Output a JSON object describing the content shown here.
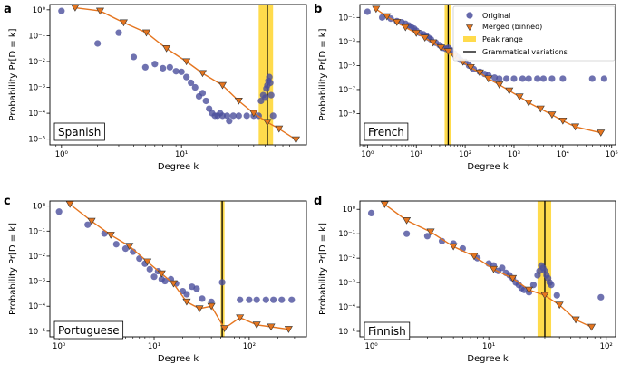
{
  "colors": {
    "original": "#4b4f9c",
    "merged_line": "#e5751f",
    "merged_marker": "#e5751f",
    "peak": "#ffd21f",
    "grammatical": "#000000"
  },
  "legend": {
    "original": "Original",
    "merged": "Merged (binned)",
    "peak": "Peak range",
    "grammatical": "Grammatical variations"
  },
  "chart_data": [
    {
      "type": "scatter",
      "panel": "a",
      "language": "Spanish",
      "xlabel": "Degree k",
      "ylabel": "Probability Pr[D = k]",
      "xscale": "log",
      "yscale": "log",
      "xlim": [
        0.8,
        110
      ],
      "ylim": [
        6e-06,
        1.6
      ],
      "xticks": [
        1,
        10
      ],
      "xtick_labels": [
        "10⁰",
        "10¹"
      ],
      "yticks": [
        1e-05,
        0.0001,
        0.001,
        0.01,
        0.1,
        1
      ],
      "ytick_labels": [
        "10⁻⁵",
        "10⁻⁴",
        "10⁻³",
        "10⁻²",
        "10⁻¹",
        "10⁰"
      ],
      "peak_range": [
        44,
        58
      ],
      "grammatical_k": 52,
      "original": [
        [
          1,
          0.9
        ],
        [
          2,
          0.05
        ],
        [
          3,
          0.13
        ],
        [
          4,
          0.015
        ],
        [
          5,
          0.006
        ],
        [
          6,
          0.008
        ],
        [
          7,
          0.0055
        ],
        [
          8,
          0.006
        ],
        [
          9,
          0.0042
        ],
        [
          10,
          0.004
        ],
        [
          11,
          0.0025
        ],
        [
          12,
          0.0015
        ],
        [
          13,
          0.001
        ],
        [
          14,
          0.00045
        ],
        [
          15,
          0.0006
        ],
        [
          16,
          0.0003
        ],
        [
          17,
          0.00015
        ],
        [
          18,
          0.0001
        ],
        [
          19,
          8e-05
        ],
        [
          20,
          8e-05
        ],
        [
          21,
          0.0001
        ],
        [
          22,
          8e-05
        ],
        [
          24,
          8e-05
        ],
        [
          25,
          5e-05
        ],
        [
          27,
          8e-05
        ],
        [
          30,
          8e-05
        ],
        [
          35,
          8e-05
        ],
        [
          40,
          8e-05
        ],
        [
          44,
          8e-05
        ],
        [
          46,
          0.0003
        ],
        [
          48,
          0.0005
        ],
        [
          50,
          0.0004
        ],
        [
          51,
          0.0009
        ],
        [
          52,
          0.0012
        ],
        [
          53,
          0.0018
        ],
        [
          54,
          0.0025
        ],
        [
          55,
          0.0015
        ],
        [
          56,
          0.0005
        ],
        [
          58,
          8e-05
        ]
      ],
      "merged": [
        [
          1.3,
          1.2
        ],
        [
          2.1,
          0.9
        ],
        [
          3.3,
          0.32
        ],
        [
          5.1,
          0.13
        ],
        [
          7.5,
          0.032
        ],
        [
          11,
          0.01
        ],
        [
          15,
          0.0035
        ],
        [
          22,
          0.0012
        ],
        [
          30,
          0.0003
        ],
        [
          40,
          0.0001
        ],
        [
          52,
          4.5e-05
        ],
        [
          65,
          2.5e-05
        ],
        [
          90,
          9.5e-06
        ]
      ]
    },
    {
      "type": "scatter",
      "panel": "b",
      "language": "French",
      "xlabel": "Degree k",
      "ylabel": "Probability Pr[D = k]",
      "xscale": "log",
      "yscale": "log",
      "xlim": [
        0.7,
        120000
      ],
      "ylim": [
        2.5e-12,
        1.2
      ],
      "xticks": [
        1,
        10,
        100,
        1000,
        10000,
        100000
      ],
      "xtick_labels": [
        "10⁰",
        "10¹",
        "10²",
        "10³",
        "10⁴",
        "10⁵"
      ],
      "yticks": [
        1e-09,
        1e-07,
        1e-05,
        0.001,
        0.1
      ],
      "ytick_labels": [
        "10⁻⁹",
        "10⁻⁷",
        "10⁻⁵",
        "10⁻³",
        "10⁻¹"
      ],
      "peak_range": [
        38,
        52
      ],
      "grammatical_k": 45,
      "original": [
        [
          1,
          0.3
        ],
        [
          2,
          0.1
        ],
        [
          3,
          0.08
        ],
        [
          4,
          0.05
        ],
        [
          5,
          0.04
        ],
        [
          6,
          0.03
        ],
        [
          7,
          0.022
        ],
        [
          8,
          0.015
        ],
        [
          9,
          0.012
        ],
        [
          10,
          0.008
        ],
        [
          12,
          0.005
        ],
        [
          14,
          0.004
        ],
        [
          16,
          0.003
        ],
        [
          18,
          0.002
        ],
        [
          20,
          0.0015
        ],
        [
          25,
          0.0008
        ],
        [
          30,
          0.0005
        ],
        [
          35,
          0.0003
        ],
        [
          40,
          0.00025
        ],
        [
          45,
          0.0003
        ],
        [
          50,
          0.0002
        ],
        [
          60,
          0.0001
        ],
        [
          70,
          5e-05
        ],
        [
          80,
          3e-05
        ],
        [
          100,
          2e-05
        ],
        [
          120,
          1e-05
        ],
        [
          150,
          5e-06
        ],
        [
          200,
          3e-06
        ],
        [
          250,
          2e-06
        ],
        [
          300,
          1.5e-06
        ],
        [
          400,
          1e-06
        ],
        [
          500,
          8e-07
        ],
        [
          700,
          8e-07
        ],
        [
          1000,
          8e-07
        ],
        [
          1500,
          8e-07
        ],
        [
          2000,
          8e-07
        ],
        [
          3000,
          8e-07
        ],
        [
          4000,
          8e-07
        ],
        [
          6000,
          8e-07
        ],
        [
          10000,
          8e-07
        ],
        [
          40000,
          8e-07
        ],
        [
          70000,
          8e-07
        ]
      ],
      "merged": [
        [
          1.5,
          0.5
        ],
        [
          2.5,
          0.12
        ],
        [
          4,
          0.04
        ],
        [
          6,
          0.015
        ],
        [
          10,
          0.005
        ],
        [
          15,
          0.002
        ],
        [
          22,
          0.0008
        ],
        [
          32,
          0.0003
        ],
        [
          45,
          0.00015
        ],
        [
          60,
          6e-05
        ],
        [
          90,
          2e-05
        ],
        [
          130,
          7e-06
        ],
        [
          200,
          2.5e-06
        ],
        [
          300,
          8e-07
        ],
        [
          500,
          2.5e-07
        ],
        [
          800,
          8e-08
        ],
        [
          1300,
          2.5e-08
        ],
        [
          2000,
          8e-09
        ],
        [
          3500,
          2.5e-09
        ],
        [
          6000,
          8e-10
        ],
        [
          10000,
          2.5e-10
        ],
        [
          18000,
          8e-11
        ],
        [
          60000,
          2.5e-11
        ]
      ]
    },
    {
      "type": "scatter",
      "panel": "c",
      "language": "Portuguese",
      "xlabel": "Degree k",
      "ylabel": "Probability Pr[D = k]",
      "xscale": "log",
      "yscale": "log",
      "xlim": [
        0.8,
        400
      ],
      "ylim": [
        6e-06,
        1.6
      ],
      "xticks": [
        1,
        10,
        100
      ],
      "xtick_labels": [
        "10⁰",
        "10¹",
        "10²"
      ],
      "yticks": [
        1e-05,
        0.0001,
        0.001,
        0.01,
        0.1,
        1
      ],
      "ytick_labels": [
        "10⁻⁵",
        "10⁻⁴",
        "10⁻³",
        "10⁻²",
        "10⁻¹",
        "10⁰"
      ],
      "peak_range": [
        50,
        55
      ],
      "grammatical_k": 52,
      "original": [
        [
          1,
          0.6
        ],
        [
          2,
          0.18
        ],
        [
          3,
          0.08
        ],
        [
          4,
          0.03
        ],
        [
          5,
          0.02
        ],
        [
          6,
          0.015
        ],
        [
          7,
          0.008
        ],
        [
          8,
          0.005
        ],
        [
          9,
          0.003
        ],
        [
          10,
          0.0015
        ],
        [
          11,
          0.0025
        ],
        [
          12,
          0.0012
        ],
        [
          13,
          0.001
        ],
        [
          15,
          0.0012
        ],
        [
          17,
          0.0008
        ],
        [
          20,
          0.0004
        ],
        [
          22,
          0.0003
        ],
        [
          25,
          0.0006
        ],
        [
          28,
          0.0005
        ],
        [
          32,
          0.0002
        ],
        [
          40,
          0.00015
        ],
        [
          52,
          0.0009
        ],
        [
          80,
          0.00018
        ],
        [
          100,
          0.00018
        ],
        [
          120,
          0.00018
        ],
        [
          150,
          0.00018
        ],
        [
          180,
          0.00018
        ],
        [
          220,
          0.00018
        ],
        [
          280,
          0.00018
        ]
      ],
      "merged": [
        [
          1.3,
          1.2
        ],
        [
          2.2,
          0.25
        ],
        [
          3.5,
          0.07
        ],
        [
          5.5,
          0.025
        ],
        [
          8.5,
          0.006
        ],
        [
          12,
          0.002
        ],
        [
          16,
          0.0008
        ],
        [
          22,
          0.00015
        ],
        [
          30,
          8e-05
        ],
        [
          40,
          0.0001
        ],
        [
          55,
          1.3e-05
        ],
        [
          80,
          3.5e-05
        ],
        [
          120,
          1.8e-05
        ],
        [
          170,
          1.5e-05
        ],
        [
          260,
          1.2e-05
        ]
      ]
    },
    {
      "type": "scatter",
      "panel": "d",
      "language": "Finnish",
      "xlabel": "Degree k",
      "ylabel": "Probability Pr[D = k]",
      "xscale": "log",
      "yscale": "log",
      "xlim": [
        0.8,
        120
      ],
      "ylim": [
        6e-06,
        2.2
      ],
      "xticks": [
        1,
        10,
        100
      ],
      "xtick_labels": [
        "10⁰",
        "10¹",
        "10²"
      ],
      "yticks": [
        1e-05,
        0.0001,
        0.001,
        0.01,
        0.1,
        1
      ],
      "ytick_labels": [
        "10⁻⁵",
        "10⁻⁴",
        "10⁻³",
        "10⁻²",
        "10⁻¹",
        "10⁰"
      ],
      "peak_range": [
        26,
        34
      ],
      "grammatical_k": 30,
      "original": [
        [
          1,
          0.7
        ],
        [
          2,
          0.1
        ],
        [
          3,
          0.08
        ],
        [
          4,
          0.05
        ],
        [
          5,
          0.04
        ],
        [
          6,
          0.025
        ],
        [
          8,
          0.01
        ],
        [
          10,
          0.006
        ],
        [
          11,
          0.005
        ],
        [
          12,
          0.003
        ],
        [
          13,
          0.004
        ],
        [
          14,
          0.0025
        ],
        [
          15,
          0.002
        ],
        [
          16,
          0.0015
        ],
        [
          17,
          0.001
        ],
        [
          18,
          0.0008
        ],
        [
          19,
          0.0006
        ],
        [
          20,
          0.0005
        ],
        [
          22,
          0.0004
        ],
        [
          24,
          0.0008
        ],
        [
          26,
          0.002
        ],
        [
          27,
          0.003
        ],
        [
          28,
          0.005
        ],
        [
          29,
          0.004
        ],
        [
          30,
          0.003
        ],
        [
          31,
          0.002
        ],
        [
          32,
          0.0015
        ],
        [
          33,
          0.001
        ],
        [
          34,
          0.0008
        ],
        [
          38,
          0.0003
        ],
        [
          90,
          0.00025
        ]
      ],
      "merged": [
        [
          1.3,
          1.6
        ],
        [
          2,
          0.35
        ],
        [
          3.2,
          0.12
        ],
        [
          5,
          0.03
        ],
        [
          7.5,
          0.012
        ],
        [
          11,
          0.0035
        ],
        [
          16,
          0.0015
        ],
        [
          22,
          0.0005
        ],
        [
          30,
          0.0003
        ],
        [
          40,
          0.00012
        ],
        [
          55,
          3e-05
        ],
        [
          75,
          1.5e-05
        ]
      ]
    }
  ]
}
